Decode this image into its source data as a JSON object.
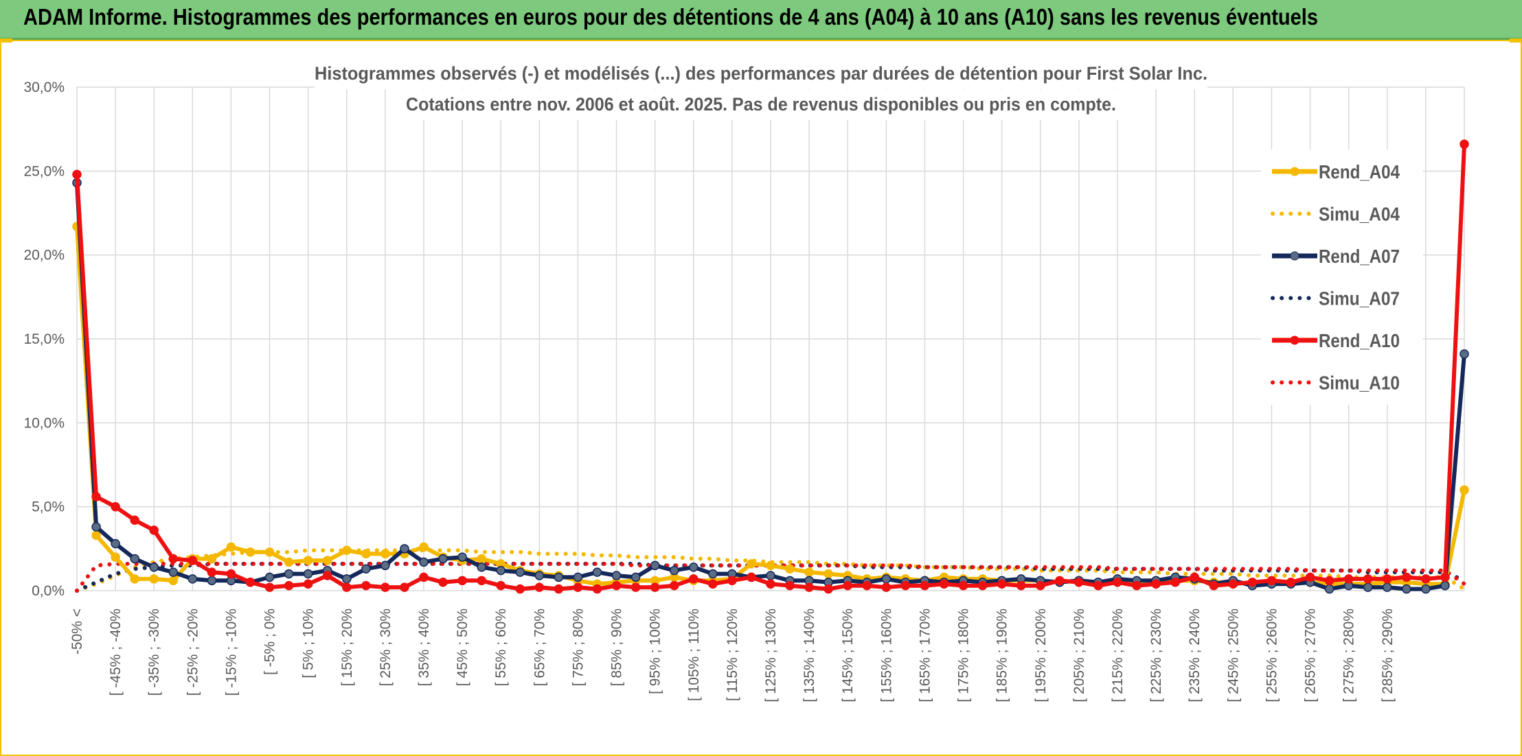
{
  "banner": {
    "title": "ADAM Informe. Histogrammes des performances en euros pour des détentions de 4 ans (A04) à 10 ans (A10) sans les revenus éventuels"
  },
  "colors": {
    "banner_bg": "#7dc97d",
    "frame": "#f2c200",
    "A04": "#f5b800",
    "A07": "#14285a",
    "A10": "#ee1111"
  },
  "chart_data": {
    "type": "line",
    "title": "Histogrammes observés (-) et modélisés (...) des performances par durées de détention pour First Solar Inc.",
    "subtitle": "Cotations entre nov. 2006 et août. 2025. Pas de revenus disponibles ou pris en compte.",
    "xlabel": "",
    "ylabel": "",
    "ylim": [
      0,
      30
    ],
    "y_ticks": [
      "0,0%",
      "5,0%",
      "10,0%",
      "15,0%",
      "20,0%",
      "25,0%",
      "30,0%"
    ],
    "grid": true,
    "legend_position": "right",
    "x_tick_labels": [
      "-50% <",
      "[ -45% ; -40%",
      "[ -35% ; -30%",
      "[ -25% ; -20%",
      "[ -15% ; -10%",
      "[ -5% ; 0%",
      "[ 5% ; 10%",
      "[ 15% ; 20%",
      "[ 25% ; 30%",
      "[ 35% ; 40%",
      "[ 45% ; 50%",
      "[ 55% ; 60%",
      "[ 65% ; 70%",
      "[ 75% ; 80%",
      "[ 85% ; 90%",
      "[ 95% ; 100%",
      "[ 105% ; 110%",
      "[ 115% ; 120%",
      "[ 125% ; 130%",
      "[ 135% ; 140%",
      "[ 145% ; 150%",
      "[ 155% ; 160%",
      "[ 165% ; 170%",
      "[ 175% ; 180%",
      "[ 185% ; 190%",
      "[ 195% ; 200%",
      "[ 205% ; 210%",
      "[ 215% ; 220%",
      "[ 225% ; 230%",
      "[ 235% ; 240%",
      "[ 245% ; 250%",
      "[ 255% ; 260%",
      "[ 265% ; 270%",
      "[ 275% ; 280%",
      "[ 285% ; 290%"
    ],
    "series": [
      {
        "name": "Rend_A04",
        "style": "solid",
        "color": "#f5b800",
        "values": [
          21.7,
          3.3,
          2.0,
          0.7,
          0.7,
          0.6,
          1.9,
          1.9,
          2.6,
          2.3,
          2.3,
          1.7,
          1.8,
          1.8,
          2.4,
          2.2,
          2.2,
          2.2,
          2.6,
          2.0,
          1.8,
          1.9,
          1.6,
          1.2,
          1.0,
          0.9,
          0.6,
          0.4,
          0.5,
          0.6,
          0.6,
          0.8,
          0.6,
          0.6,
          0.7,
          1.6,
          1.5,
          1.3,
          1.1,
          1.0,
          0.9,
          0.7,
          0.8,
          0.7,
          0.6,
          0.8,
          0.7,
          0.7,
          0.6,
          0.6,
          0.6,
          0.5,
          0.6,
          0.5,
          0.6,
          0.5,
          0.6,
          0.6,
          0.6,
          0.5,
          0.5,
          0.4,
          0.5,
          0.4,
          0.5,
          0.4,
          0.4,
          0.4,
          0.5,
          0.5,
          0.4,
          0.4,
          6.0
        ]
      },
      {
        "name": "Simu_A04",
        "style": "dotted",
        "color": "#f5b800",
        "values": [
          0.0,
          0.4,
          0.9,
          1.4,
          1.7,
          1.9,
          2.0,
          2.1,
          2.2,
          2.3,
          2.3,
          2.3,
          2.4,
          2.4,
          2.4,
          2.4,
          2.4,
          2.4,
          2.4,
          2.4,
          2.4,
          2.3,
          2.3,
          2.3,
          2.2,
          2.2,
          2.2,
          2.1,
          2.1,
          2.0,
          2.0,
          2.0,
          1.9,
          1.9,
          1.8,
          1.8,
          1.7,
          1.7,
          1.7,
          1.6,
          1.6,
          1.5,
          1.5,
          1.5,
          1.4,
          1.4,
          1.4,
          1.3,
          1.3,
          1.3,
          1.2,
          1.2,
          1.2,
          1.2,
          1.1,
          1.1,
          1.1,
          1.0,
          1.0,
          1.0,
          1.0,
          0.9,
          0.9,
          0.9,
          0.9,
          0.9,
          0.8,
          0.8,
          0.8,
          0.8,
          0.8,
          0.8,
          0.1
        ]
      },
      {
        "name": "Rend_A07",
        "style": "solid",
        "color": "#14285a",
        "values": [
          24.3,
          3.8,
          2.8,
          1.9,
          1.4,
          1.1,
          0.7,
          0.6,
          0.6,
          0.5,
          0.8,
          1.0,
          1.0,
          1.2,
          0.7,
          1.3,
          1.5,
          2.5,
          1.7,
          1.9,
          2.0,
          1.4,
          1.2,
          1.1,
          0.9,
          0.8,
          0.8,
          1.1,
          0.9,
          0.8,
          1.5,
          1.2,
          1.4,
          1.0,
          1.0,
          0.8,
          0.9,
          0.6,
          0.6,
          0.5,
          0.6,
          0.5,
          0.7,
          0.5,
          0.6,
          0.5,
          0.6,
          0.5,
          0.6,
          0.7,
          0.6,
          0.5,
          0.6,
          0.5,
          0.7,
          0.6,
          0.6,
          0.8,
          0.7,
          0.4,
          0.6,
          0.3,
          0.4,
          0.4,
          0.5,
          0.1,
          0.3,
          0.2,
          0.2,
          0.1,
          0.1,
          0.3,
          14.1
        ]
      },
      {
        "name": "Simu_A07",
        "style": "dotted",
        "color": "#14285a",
        "values": [
          0.0,
          0.5,
          1.0,
          1.3,
          1.4,
          1.5,
          1.5,
          1.6,
          1.6,
          1.6,
          1.6,
          1.6,
          1.6,
          1.6,
          1.6,
          1.6,
          1.6,
          1.6,
          1.6,
          1.6,
          1.6,
          1.6,
          1.6,
          1.6,
          1.6,
          1.6,
          1.6,
          1.6,
          1.6,
          1.6,
          1.5,
          1.5,
          1.5,
          1.5,
          1.5,
          1.5,
          1.5,
          1.5,
          1.5,
          1.5,
          1.5,
          1.4,
          1.4,
          1.4,
          1.4,
          1.4,
          1.4,
          1.4,
          1.4,
          1.4,
          1.3,
          1.3,
          1.3,
          1.3,
          1.3,
          1.3,
          1.3,
          1.3,
          1.3,
          1.2,
          1.2,
          1.2,
          1.2,
          1.2,
          1.2,
          1.2,
          1.2,
          1.1,
          1.1,
          1.1,
          1.1,
          1.1,
          0.6
        ]
      },
      {
        "name": "Rend_A10",
        "style": "solid",
        "color": "#ee1111",
        "values": [
          24.8,
          5.6,
          5.0,
          4.2,
          3.6,
          1.9,
          1.8,
          1.1,
          1.0,
          0.5,
          0.2,
          0.3,
          0.4,
          0.9,
          0.2,
          0.3,
          0.2,
          0.2,
          0.8,
          0.5,
          0.6,
          0.6,
          0.3,
          0.1,
          0.2,
          0.1,
          0.2,
          0.1,
          0.3,
          0.2,
          0.2,
          0.3,
          0.7,
          0.4,
          0.6,
          0.8,
          0.4,
          0.3,
          0.2,
          0.1,
          0.3,
          0.3,
          0.2,
          0.3,
          0.3,
          0.4,
          0.3,
          0.3,
          0.4,
          0.3,
          0.3,
          0.6,
          0.5,
          0.3,
          0.5,
          0.3,
          0.4,
          0.5,
          0.8,
          0.3,
          0.4,
          0.5,
          0.6,
          0.5,
          0.8,
          0.6,
          0.7,
          0.7,
          0.7,
          0.8,
          0.7,
          0.8,
          26.6
        ]
      },
      {
        "name": "Simu_A10",
        "style": "dotted",
        "color": "#ee1111",
        "values": [
          0.0,
          1.5,
          1.6,
          1.6,
          1.6,
          1.6,
          1.6,
          1.6,
          1.6,
          1.6,
          1.6,
          1.6,
          1.6,
          1.6,
          1.6,
          1.6,
          1.6,
          1.6,
          1.6,
          1.6,
          1.6,
          1.6,
          1.6,
          1.6,
          1.6,
          1.6,
          1.6,
          1.6,
          1.6,
          1.5,
          1.5,
          1.5,
          1.5,
          1.5,
          1.5,
          1.5,
          1.5,
          1.5,
          1.5,
          1.5,
          1.5,
          1.5,
          1.5,
          1.5,
          1.4,
          1.4,
          1.4,
          1.4,
          1.4,
          1.4,
          1.4,
          1.4,
          1.4,
          1.4,
          1.3,
          1.3,
          1.3,
          1.3,
          1.3,
          1.3,
          1.3,
          1.3,
          1.3,
          1.3,
          1.2,
          1.2,
          1.2,
          1.2,
          1.2,
          1.2,
          1.2,
          1.2,
          0.4
        ]
      }
    ]
  }
}
